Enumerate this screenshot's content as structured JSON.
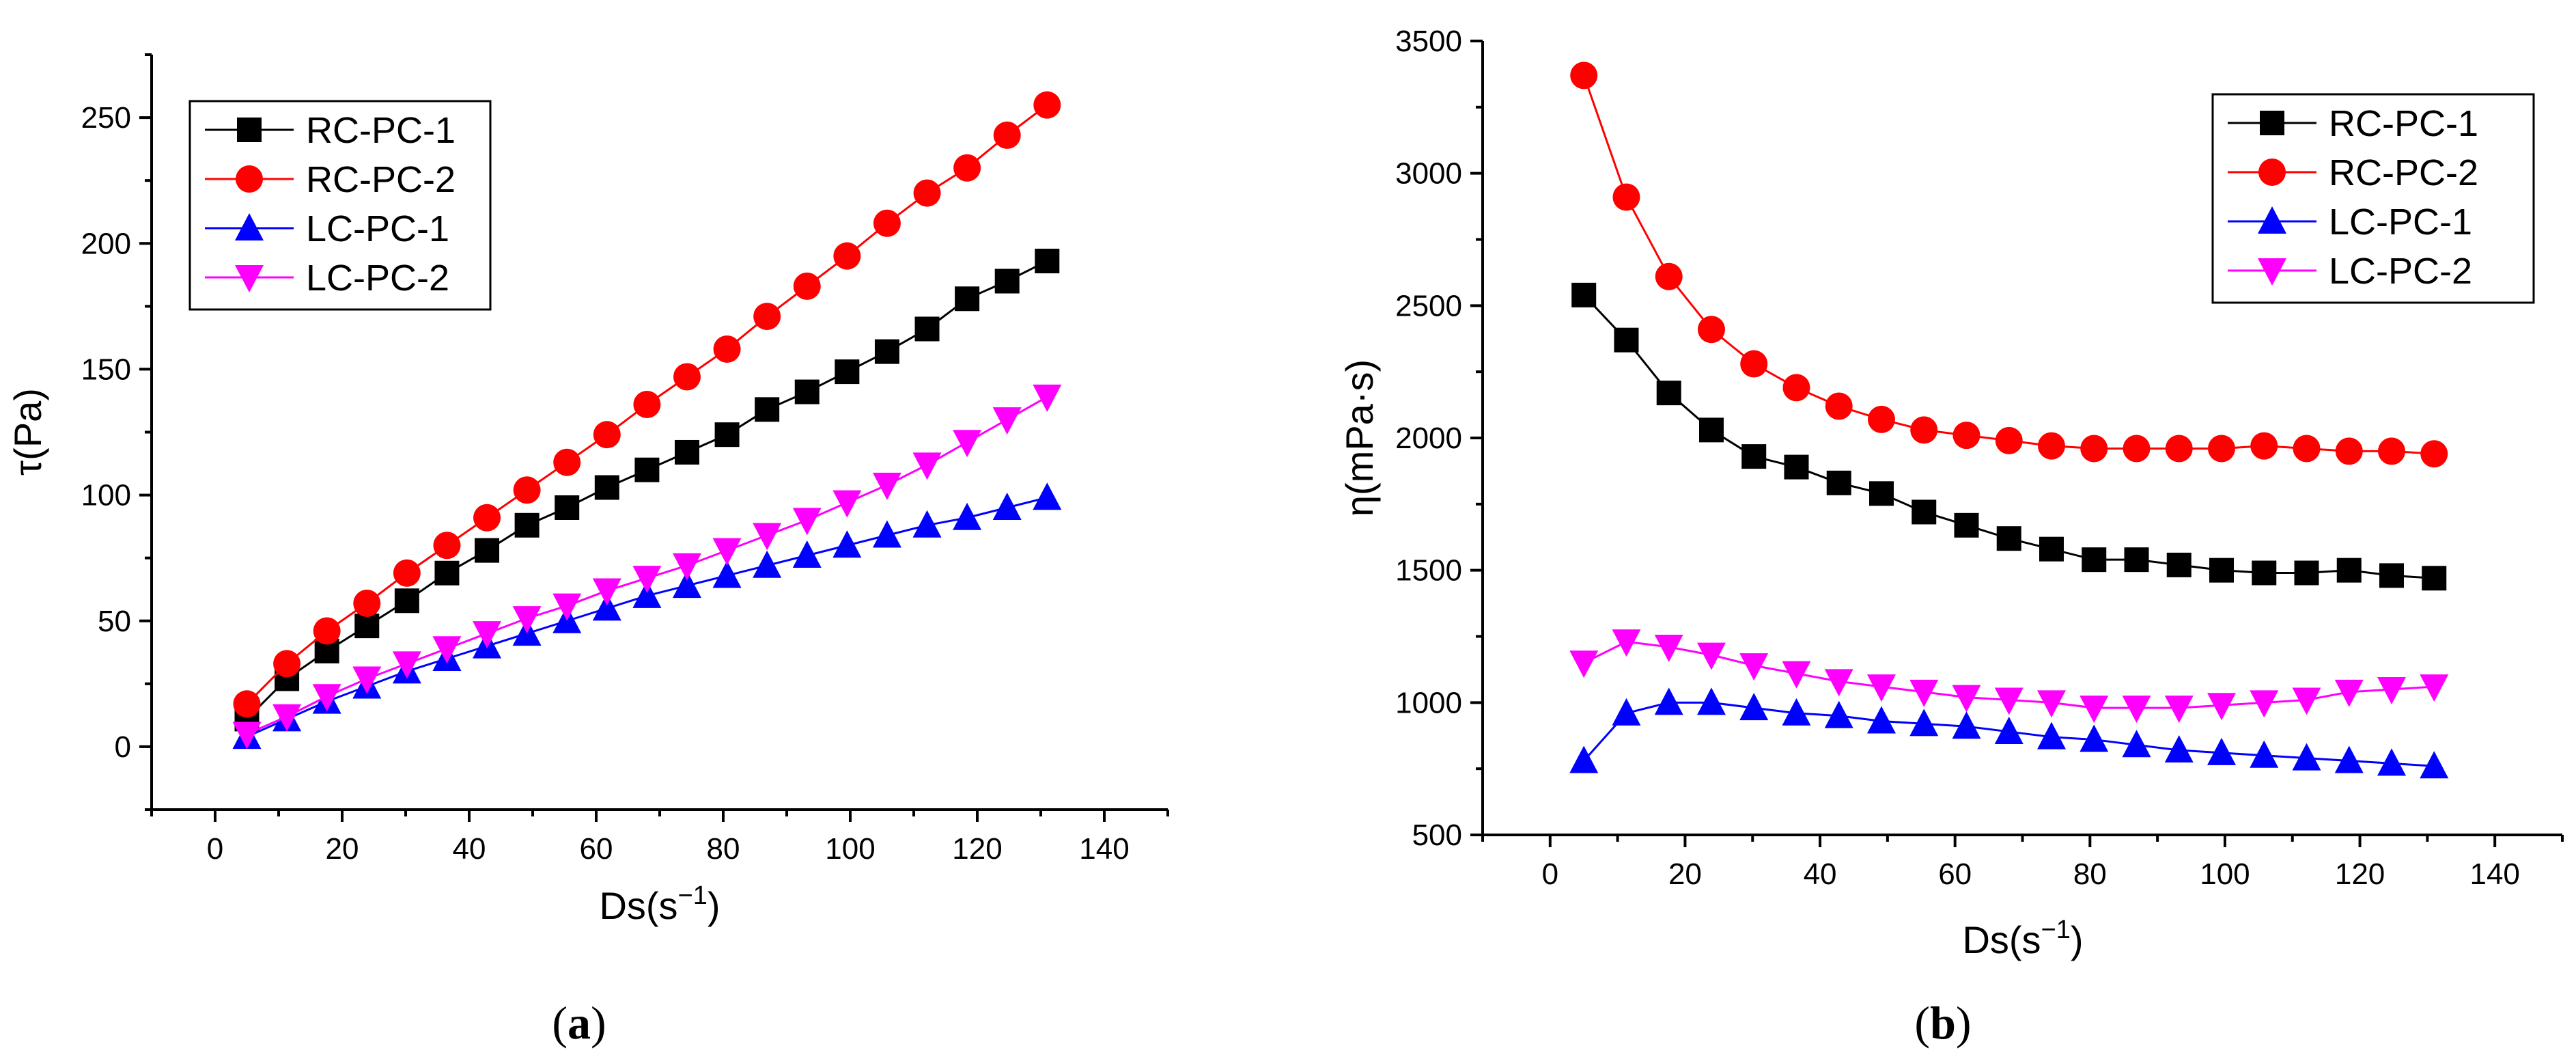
{
  "chart_data": [
    {
      "id": "a",
      "type": "line",
      "caption_open": "(",
      "caption_letter": "a",
      "caption_close": ")",
      "xlabel": "Ds(s",
      "xlabel_sup": "−1",
      "xlabel_end": ")",
      "ylabel": "τ(Pa)",
      "xlim": [
        -10,
        150
      ],
      "ylim": [
        -25,
        275
      ],
      "xticks": [
        0,
        20,
        40,
        60,
        80,
        100,
        120,
        140
      ],
      "yticks": [
        0,
        50,
        100,
        150,
        200,
        250
      ],
      "x": [
        5,
        11.3,
        17.6,
        23.9,
        30.2,
        36.5,
        42.8,
        49.1,
        55.4,
        61.7,
        68,
        74.3,
        80.6,
        86.9,
        93.2,
        99.5,
        105.8,
        112.1,
        118.4,
        124.7,
        131
      ],
      "legend_position": "top-left",
      "series": [
        {
          "name": "RC-PC-1",
          "color": "#000000",
          "marker": "square",
          "values": [
            11,
            27,
            38,
            48,
            58,
            69,
            78,
            88,
            95,
            103,
            110,
            117,
            124,
            134,
            141,
            149,
            157,
            166,
            178,
            185,
            193
          ]
        },
        {
          "name": "RC-PC-2",
          "color": "#ff0000",
          "marker": "circle",
          "values": [
            17,
            33,
            46,
            57,
            69,
            80,
            91,
            102,
            113,
            124,
            136,
            147,
            158,
            171,
            183,
            195,
            208,
            220,
            230,
            243,
            255
          ]
        },
        {
          "name": "LC-PC-1",
          "color": "#0000ff",
          "marker": "triangle-up",
          "values": [
            4,
            11,
            18,
            24,
            30,
            35,
            40,
            45,
            50,
            55,
            60,
            64,
            68,
            72,
            76,
            80,
            84,
            88,
            91,
            95,
            99
          ]
        },
        {
          "name": "LC-PC-2",
          "color": "#ff00ff",
          "marker": "triangle-down",
          "values": [
            5,
            12,
            20,
            27,
            33,
            39,
            45,
            51,
            56,
            62,
            67,
            72,
            78,
            84,
            90,
            97,
            104,
            112,
            121,
            130,
            139
          ]
        }
      ]
    },
    {
      "id": "b",
      "type": "line",
      "caption_open": "(",
      "caption_letter": "b",
      "caption_close": ")",
      "xlabel": "Ds(s",
      "xlabel_sup": "−1",
      "xlabel_end": ")",
      "ylabel": "η(mPa·s)",
      "xlim": [
        -10,
        150
      ],
      "ylim": [
        500,
        3500
      ],
      "xticks": [
        0,
        20,
        40,
        60,
        80,
        100,
        120,
        140
      ],
      "yticks": [
        500,
        1000,
        1500,
        2000,
        2500,
        3000,
        3500
      ],
      "x": [
        5,
        11.3,
        17.6,
        23.9,
        30.2,
        36.5,
        42.8,
        49.1,
        55.4,
        61.7,
        68,
        74.3,
        80.6,
        86.9,
        93.2,
        99.5,
        105.8,
        112.1,
        118.4,
        124.7,
        131
      ],
      "legend_position": "top-right",
      "series": [
        {
          "name": "RC-PC-1",
          "color": "#000000",
          "marker": "square",
          "values": [
            2540,
            2370,
            2170,
            2030,
            1930,
            1890,
            1830,
            1790,
            1720,
            1670,
            1620,
            1580,
            1540,
            1540,
            1520,
            1500,
            1490,
            1490,
            1500,
            1480,
            1470
          ]
        },
        {
          "name": "RC-PC-2",
          "color": "#ff0000",
          "marker": "circle",
          "values": [
            3370,
            2910,
            2610,
            2410,
            2280,
            2190,
            2120,
            2070,
            2030,
            2010,
            1990,
            1970,
            1960,
            1960,
            1960,
            1960,
            1970,
            1960,
            1950,
            1950,
            1940
          ]
        },
        {
          "name": "LC-PC-1",
          "color": "#0000ff",
          "marker": "triangle-up",
          "values": [
            780,
            960,
            1000,
            1000,
            980,
            960,
            950,
            930,
            920,
            910,
            890,
            870,
            860,
            840,
            820,
            810,
            800,
            790,
            780,
            770,
            760
          ]
        },
        {
          "name": "LC-PC-2",
          "color": "#ff00ff",
          "marker": "triangle-down",
          "values": [
            1150,
            1230,
            1210,
            1180,
            1140,
            1110,
            1080,
            1060,
            1040,
            1020,
            1010,
            1000,
            980,
            980,
            980,
            990,
            1000,
            1010,
            1040,
            1050,
            1060
          ]
        }
      ]
    }
  ]
}
